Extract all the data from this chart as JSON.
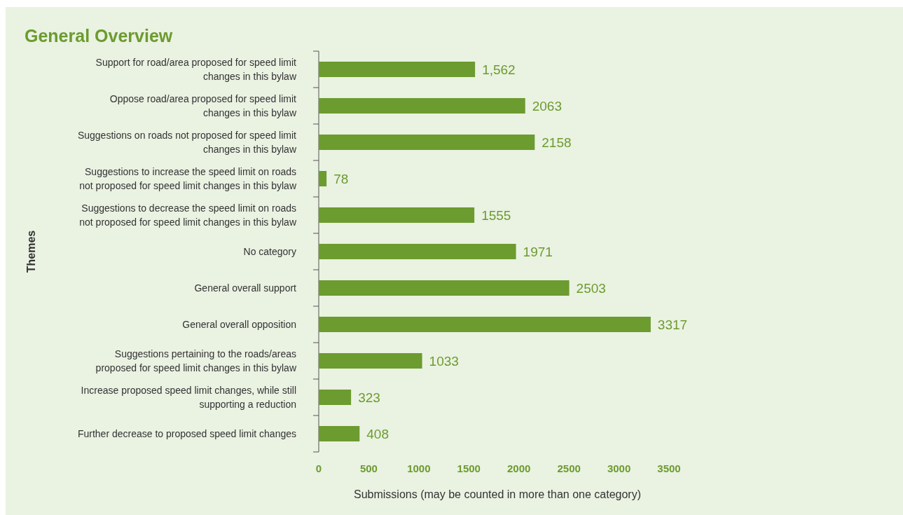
{
  "chart_data": {
    "type": "bar",
    "orientation": "horizontal",
    "title": "General Overview",
    "xlabel": "Submissions (may be counted in more than one category)",
    "ylabel": "Themes",
    "categories": [
      "Support for road/area proposed for speed limit changes in this bylaw",
      "Oppose road/area proposed for speed limit changes in this bylaw",
      "Suggestions on roads not proposed for speed limit changes in this bylaw",
      "Suggestions to increase the speed limit on roads not proposed for speed limit changes in this bylaw",
      "Suggestions to decrease the speed limit on roads not proposed for speed limit changes in this bylaw",
      "No category",
      "General overall support",
      "General overall opposition",
      "Suggestions pertaining to the roads/areas proposed for speed limit changes in this bylaw",
      "Increase proposed speed limit changes, while still supporting a reduction",
      "Further decrease to proposed speed limit changes"
    ],
    "values": [
      1562,
      2063,
      2158,
      78,
      1555,
      1971,
      2503,
      3317,
      1033,
      323,
      408
    ],
    "value_labels": [
      "1,562",
      "2063",
      "2158",
      "78",
      "1555",
      "1971",
      "2503",
      "3317",
      "1033",
      "323",
      "408"
    ],
    "color": "#6c9b2f",
    "xlim": [
      0,
      3500
    ],
    "xticks": [
      0,
      500,
      1000,
      1500,
      2000,
      2500,
      3000,
      3500
    ],
    "grid": false
  }
}
